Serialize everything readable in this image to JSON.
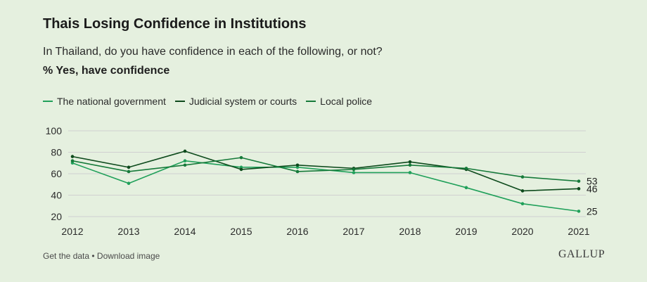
{
  "header": {
    "title": "Thais Losing Confidence in Institutions",
    "subtitle": "In Thailand, do you have confidence in each of the following, or not?",
    "measure": "% Yes, have confidence"
  },
  "footer": {
    "get_data": "Get the data",
    "separator": " • ",
    "download": "Download image",
    "brand": "GALLUP"
  },
  "colors": {
    "national_government": "#20a05a",
    "judicial": "#0d4a1c",
    "police": "#167a3a",
    "grid": "#d0d0d0",
    "background": "#e5f0df"
  },
  "chart_data": {
    "type": "line",
    "title": "Thais Losing Confidence in Institutions",
    "ylabel": "% Yes, have confidence",
    "xlabel": "",
    "categories": [
      "2012",
      "2013",
      "2014",
      "2015",
      "2016",
      "2017",
      "2018",
      "2019",
      "2020",
      "2021"
    ],
    "ylim": [
      20,
      100
    ],
    "yticks": [
      20,
      40,
      60,
      80,
      100
    ],
    "legend_position": "top-left",
    "series": [
      {
        "name": "The national government",
        "color_key": "national_government",
        "values": [
          70,
          51,
          72,
          66,
          66,
          61,
          61,
          47,
          32,
          25
        ],
        "end_label": "25"
      },
      {
        "name": "Judicial system or courts",
        "color_key": "judicial",
        "values": [
          76,
          66,
          81,
          64,
          68,
          65,
          71,
          64,
          44,
          46
        ],
        "end_label": "46"
      },
      {
        "name": "Local police",
        "color_key": "police",
        "values": [
          72,
          62,
          68,
          75,
          62,
          64,
          68,
          65,
          57,
          53
        ],
        "end_label": "53"
      }
    ]
  }
}
